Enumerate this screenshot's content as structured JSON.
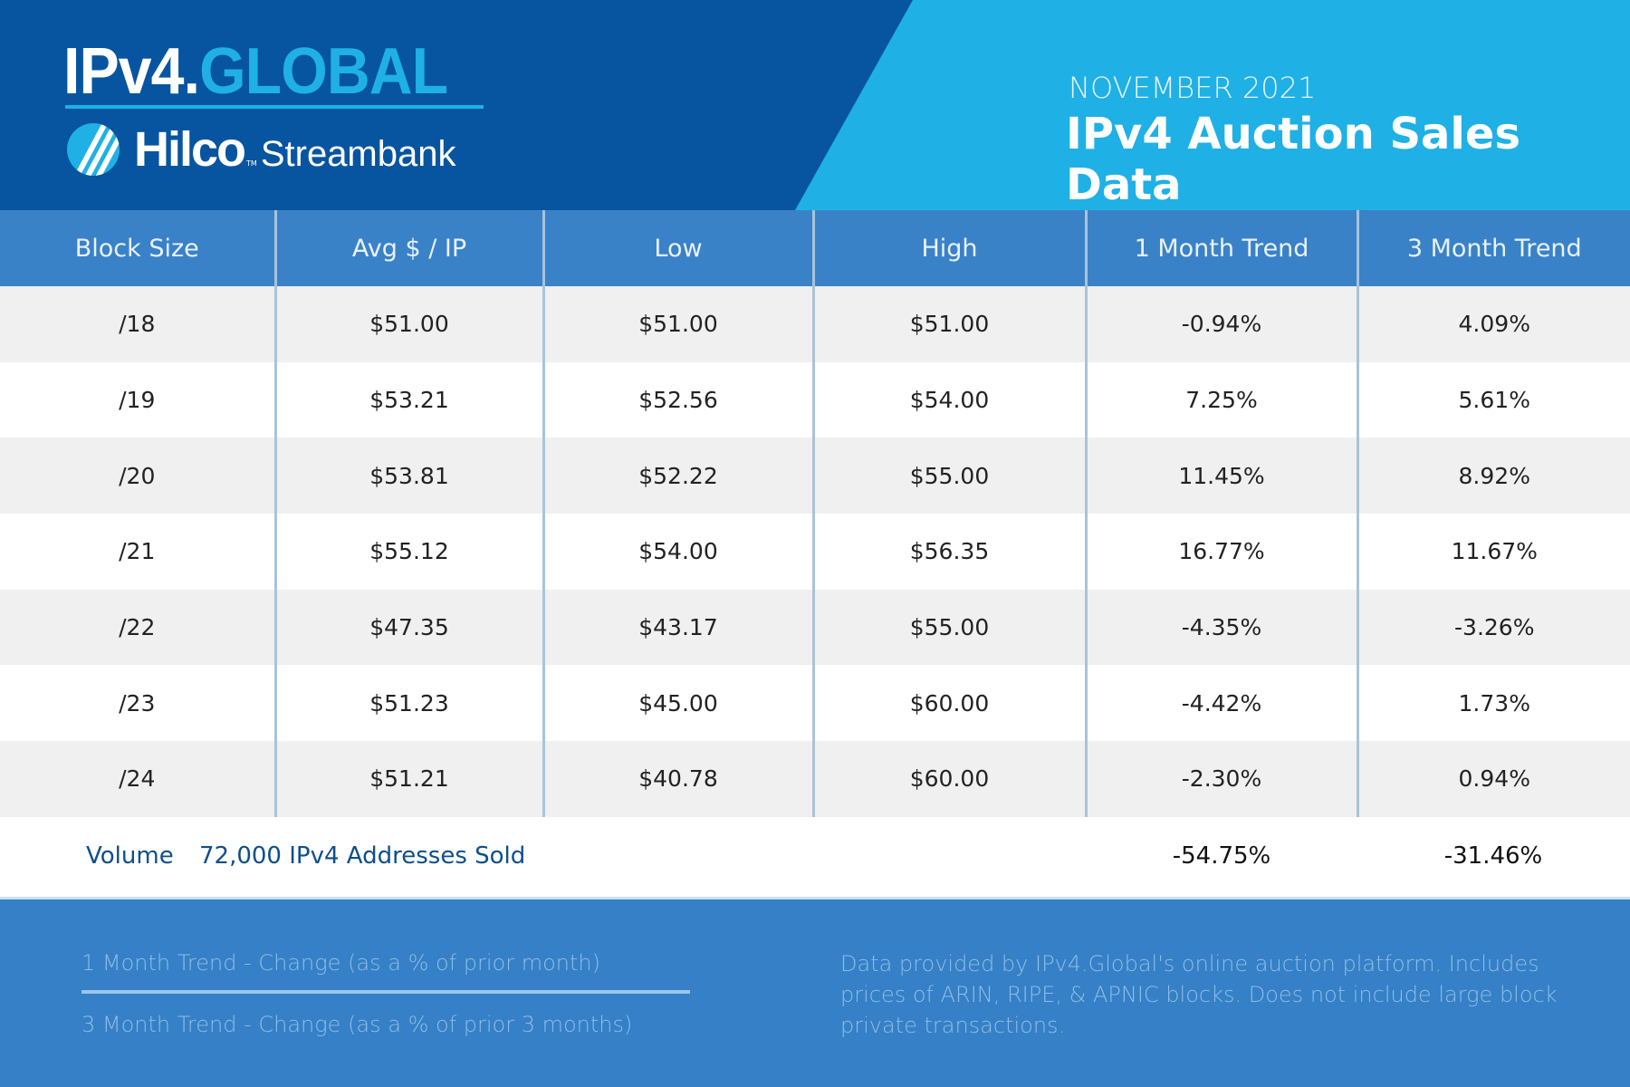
{
  "header": {
    "logo_text_a": "IPv4.",
    "logo_text_b": "GLOBAL",
    "partner_logo_a": "Hilco",
    "partner_logo_tm": "TM",
    "partner_logo_b": "Streambank",
    "month": "NOVEMBER 2021",
    "title": "IPv4 Auction Sales Data"
  },
  "colors": {
    "dark_blue": "#0755a0",
    "light_blue": "#1fb0e6",
    "header_row": "#3a82c8",
    "footer": "#3580c6"
  },
  "table": {
    "columns": [
      "Block Size",
      "Avg $ / IP",
      "Low",
      "High",
      "1 Month Trend",
      "3 Month Trend"
    ],
    "rows": [
      [
        "/18",
        "$51.00",
        "$51.00",
        "$51.00",
        "-0.94%",
        "4.09%"
      ],
      [
        "/19",
        "$53.21",
        "$52.56",
        "$54.00",
        "7.25%",
        "5.61%"
      ],
      [
        "/20",
        "$53.81",
        "$52.22",
        "$55.00",
        "11.45%",
        "8.92%"
      ],
      [
        "/21",
        "$55.12",
        "$54.00",
        "$56.35",
        "16.77%",
        "11.67%"
      ],
      [
        "/22",
        "$47.35",
        "$43.17",
        "$55.00",
        "-4.35%",
        "-3.26%"
      ],
      [
        "/23",
        "$51.23",
        "$45.00",
        "$60.00",
        "-4.42%",
        "1.73%"
      ],
      [
        "/24",
        "$51.21",
        "$40.78",
        "$60.00",
        "-2.30%",
        "0.94%"
      ]
    ]
  },
  "volume": {
    "label": "Volume",
    "text": "72,000 IPv4 Addresses Sold",
    "one_month": "-54.75%",
    "three_month": "-31.46%"
  },
  "footer": {
    "note_1": "1 Month Trend - Change (as a % of prior month)",
    "note_3": "3 Month Trend - Change (as a % of prior 3 months)",
    "description": "Data provided by IPv4.Global's online auction platform. Includes prices of ARIN, RIPE, & APNIC blocks. Does not include large block private transactions."
  }
}
